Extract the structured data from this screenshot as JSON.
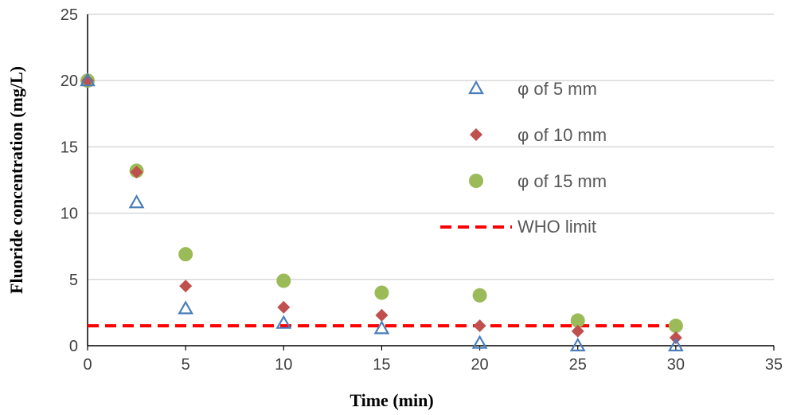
{
  "chart_data": {
    "type": "scatter",
    "xlabel": "Time (min)",
    "ylabel": "Fluoride concentration (mg/L)",
    "xlim": [
      0,
      35
    ],
    "ylim": [
      0,
      25
    ],
    "xticks": [
      "0",
      "5",
      "10",
      "15",
      "20",
      "25",
      "30",
      "35"
    ],
    "yticks": [
      "0",
      "5",
      "10",
      "15",
      "20",
      "25"
    ],
    "grid": "horizontal",
    "legend_position": "upper-right",
    "series": [
      {
        "name": "φ of 5 mm",
        "marker": "triangle-open",
        "color": "#4a7ebb",
        "x": [
          0,
          2.5,
          5,
          10,
          15,
          20,
          25,
          30
        ],
        "y": [
          20,
          10.8,
          2.8,
          1.7,
          1.3,
          0.2,
          0.0,
          0.0
        ]
      },
      {
        "name": "φ of 10 mm",
        "marker": "diamond",
        "color": "#c0504d",
        "x": [
          0,
          2.5,
          5,
          10,
          15,
          20,
          25,
          30
        ],
        "y": [
          20,
          13.1,
          4.5,
          2.9,
          2.3,
          1.5,
          1.1,
          0.6
        ]
      },
      {
        "name": "φ of 15 mm",
        "marker": "circle",
        "color": "#9bbb59",
        "x": [
          0,
          2.5,
          5,
          10,
          15,
          20,
          25,
          30
        ],
        "y": [
          20,
          13.2,
          6.9,
          4.9,
          4.0,
          3.8,
          1.9,
          1.5
        ]
      }
    ],
    "reference_line": {
      "name": "WHO limit",
      "y": 1.5,
      "x_range": [
        0,
        30
      ],
      "color": "#ff0000",
      "style": "dashed"
    }
  }
}
